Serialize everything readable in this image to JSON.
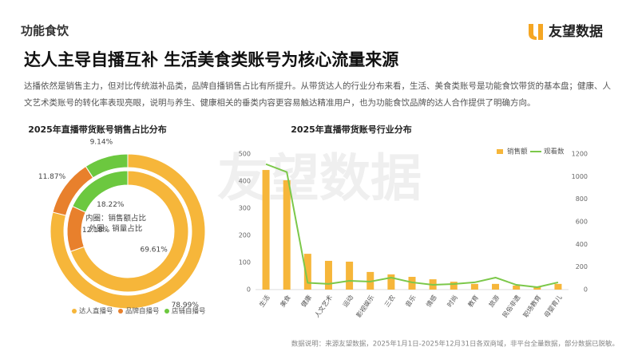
{
  "header": {
    "section": "功能食饮",
    "logo": "友望数据",
    "title": "达人主导自播互补  生活美食类账号为核心流量来源",
    "description": "达播依然是销售主力，但对比传统滋补品类，品牌自播销售占比有所提升。从带货达人的行业分布来看，生活、美食类账号是功能食饮带货的基本盘；健康、人文艺术类账号的转化率表现亮眼，说明与养生、健康相关的垂类内容更容易触达精准用户，也为功能食饮品牌的达人合作提供了明确方向。"
  },
  "watermark": "友望数据",
  "footnote": "数据说明：来源友望数据，2025年1月1日-2025年12月31日各双商域，非平台全量数据，部分数据已脱敏。",
  "chart_data": [
    {
      "type": "donut",
      "title": "2025年直播带货账号销售占比分布",
      "categories": [
        "达人直播号",
        "品牌自播号",
        "店铺自播号"
      ],
      "colors": [
        "#F6B63A",
        "#E8802C",
        "#6CC83F"
      ],
      "series": [
        {
          "name": "内圈：销售额占比",
          "ring": "inner",
          "values": [
            69.61,
            12.18,
            18.22
          ],
          "value_labels": [
            "69.61%",
            "12.18%",
            "18.22%"
          ]
        },
        {
          "name": "外圈：销量占比",
          "ring": "outer",
          "values": [
            78.99,
            11.87,
            9.14
          ],
          "value_labels": [
            "78.99%",
            "11.87%",
            "9.14%"
          ]
        }
      ]
    },
    {
      "type": "combo",
      "title": "2025年直播带货账号行业分布",
      "categories": [
        "生活",
        "美食",
        "健康",
        "人文艺术",
        "运动",
        "影视娱乐",
        "三农",
        "音乐",
        "情感",
        "时尚",
        "教育",
        "旅游",
        "民俗非遗",
        "职场教育",
        "母婴育儿"
      ],
      "series": [
        {
          "name": "销售额",
          "type": "bar",
          "color": "#F6B63A",
          "values": [
            441,
            403,
            132,
            106,
            103,
            65,
            56,
            47,
            38,
            29,
            21,
            21,
            15,
            9,
            21
          ]
        },
        {
          "name": "观看数",
          "type": "line",
          "axis": "y2",
          "color": "#7CC84A",
          "values": [
            1110,
            1040,
            60,
            50,
            78,
            71,
            106,
            64,
            42,
            49,
            64,
            106,
            42,
            21,
            64
          ]
        }
      ],
      "ylim": [
        0,
        500
      ],
      "yticks": [
        0,
        100,
        200,
        300,
        400,
        500
      ],
      "y2lim": [
        0,
        1200
      ],
      "y2ticks": [
        0,
        200,
        400,
        600,
        800,
        1000,
        1200
      ],
      "legend": "top-right"
    }
  ]
}
